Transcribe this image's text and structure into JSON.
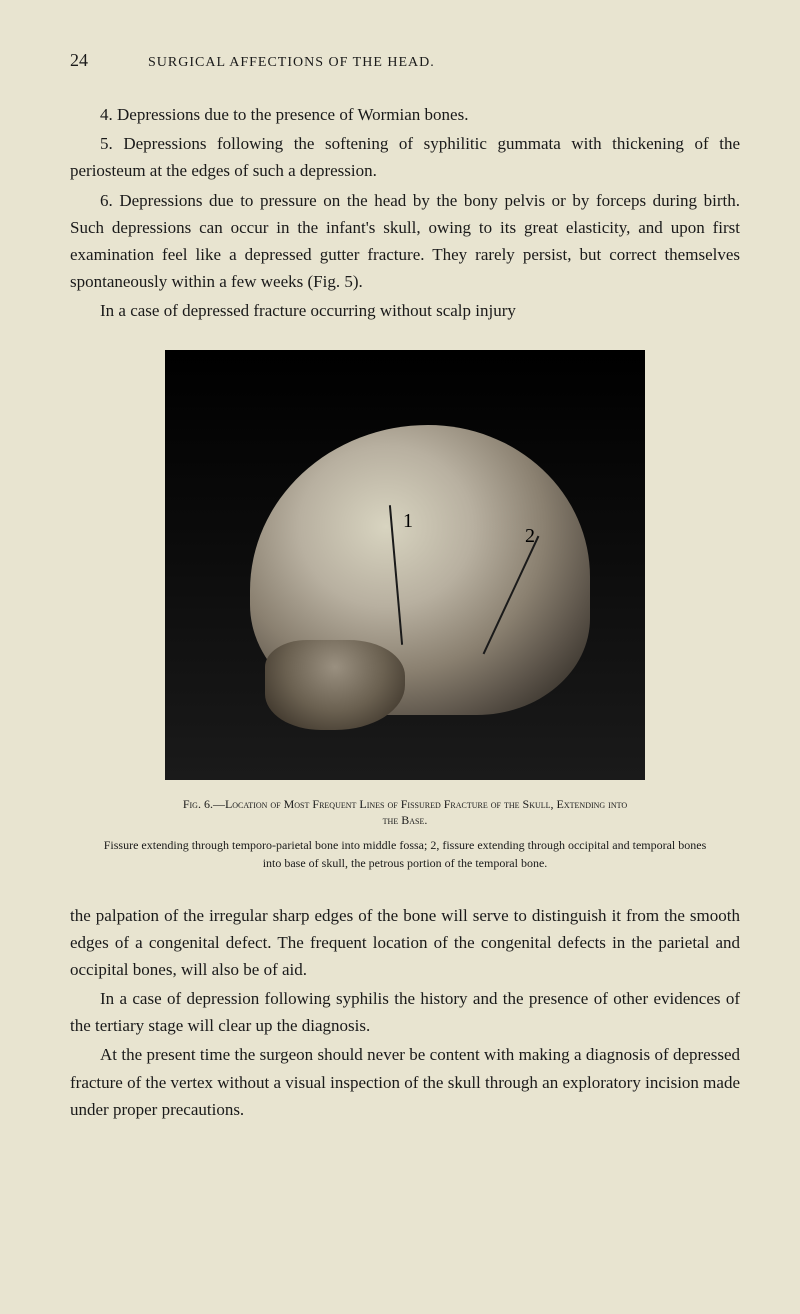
{
  "header": {
    "page_number": "24",
    "running_title": "SURGICAL AFFECTIONS OF THE HEAD."
  },
  "upper_paragraphs": {
    "p1": "4. Depressions due to the presence of Wormian bones.",
    "p2": "5. Depressions following the softening of syphilitic gummata with thickening of the periosteum at the edges of such a depression.",
    "p3": "6. Depressions due to pressure on the head by the bony pelvis or by forceps during birth. Such depressions can occur in the infant's skull, owing to its great elasticity, and upon first examination feel like a depressed gutter fracture. They rarely persist, but correct themselves spontaneously within a few weeks (Fig. 5).",
    "p4": "In a case of depressed fracture occurring without scalp injury"
  },
  "figure": {
    "label_1": "1",
    "label_2": "2",
    "caption_line1": "Fig. 6.—Location of Most Frequent Lines of Fissured Fracture of the Skull, Extending into",
    "caption_line2": "the Base.",
    "description": "Fissure extending through temporo-parietal bone into middle fossa; 2, fissure extending through occipital and temporal bones into base of skull, the petrous portion of the temporal bone."
  },
  "lower_paragraphs": {
    "p1": "the palpation of the irregular sharp edges of the bone will serve to distinguish it from the smooth edges of a congenital defect. The frequent location of the congenital defects in the parietal and occipital bones, will also be of aid.",
    "p2": "In a case of depression following syphilis the history and the presence of other evidences of the tertiary stage will clear up the diagnosis.",
    "p3": "At the present time the surgeon should never be content with making a diagnosis of depressed fracture of the vertex without a visual inspection of the skull through an exploratory incision made under proper precautions."
  },
  "colors": {
    "background": "#e8e4d0",
    "text": "#1a1a1a",
    "image_bg": "#000000"
  },
  "typography": {
    "body_fontsize": 17,
    "caption_fontsize": 12,
    "header_fontsize": 14
  }
}
